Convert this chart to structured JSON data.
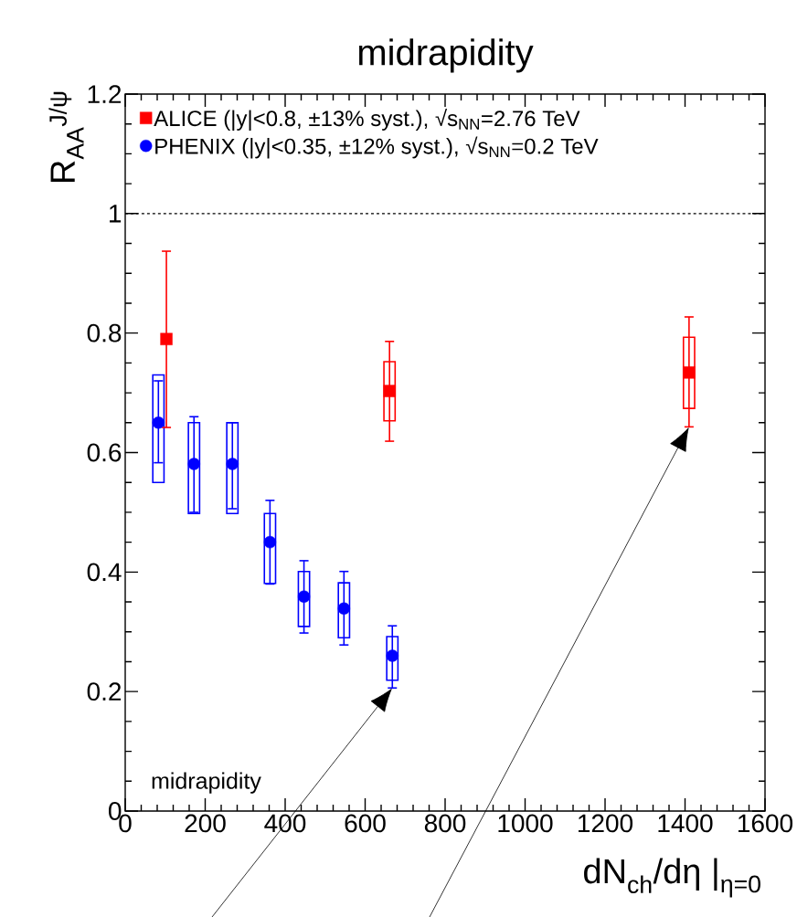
{
  "chart_data": {
    "type": "scatter",
    "title": "midrapidity",
    "xlabel": "dN$_{ch}$/dη |$_{η=0}$",
    "ylabel": "R$_{AA}$$^{J/ψ}$",
    "xlim": [
      0,
      1600
    ],
    "xticks": [
      0,
      200,
      400,
      600,
      800,
      1000,
      1200,
      1400,
      1600
    ],
    "ylim": [
      0,
      1.2
    ],
    "yticks": [
      0,
      0.2,
      0.4,
      0.6,
      0.8,
      1,
      1.2
    ],
    "legend": "top left",
    "ref_lines": [
      {
        "axis": "y",
        "value": 1,
        "color": "#000000",
        "line_style": "dashed"
      }
    ],
    "annotations": [
      "midrapidity"
    ],
    "series": [
      {
        "type": "bar",
        "color": "#ff0000",
        "x": [
          661,
          1410
        ],
        "base": [
          0.653,
          0.674
        ],
        "values": [
          0.099,
          0.119
        ]
      },
      {
        "type": "bar",
        "color": "#0000ff",
        "x": [
          83,
          172,
          268,
          362,
          447,
          547,
          668
        ],
        "base": [
          0.55,
          0.498,
          0.498,
          0.381,
          0.309,
          0.29,
          0.219
        ],
        "values": [
          0.18,
          0.152,
          0.152,
          0.117,
          0.092,
          0.092,
          0.073
        ]
      },
      {
        "name": "ALICE (|y|<0.8, ±13% syst.), √s$_{NN}$=2.76 TeV",
        "color": "#ff0000",
        "marker": "square",
        "x": [
          103,
          661,
          1410
        ],
        "values": [
          0.79,
          0.703,
          0.734
        ],
        "errors": [
          [
            0.642,
            0.937
          ],
          [
            0.619,
            0.786
          ],
          [
            0.643,
            0.827
          ]
        ]
      },
      {
        "name": "PHENIX (|y|<0.35, ±12% syst.), √s$_{NN}$=0.2 TeV",
        "color": "#0000ff",
        "marker": "circle",
        "x": [
          83,
          172,
          268,
          362,
          447,
          547,
          668
        ],
        "values": [
          0.65,
          0.581,
          0.581,
          0.45,
          0.359,
          0.339,
          0.26
        ],
        "errors": [
          [
            0.583,
            0.72
          ],
          [
            0.5,
            0.66
          ],
          [
            0.506,
            0.65
          ],
          [
            0.38,
            0.52
          ],
          [
            0.298,
            0.419
          ],
          [
            0.278,
            0.401
          ],
          [
            0.206,
            0.31
          ]
        ]
      }
    ]
  }
}
